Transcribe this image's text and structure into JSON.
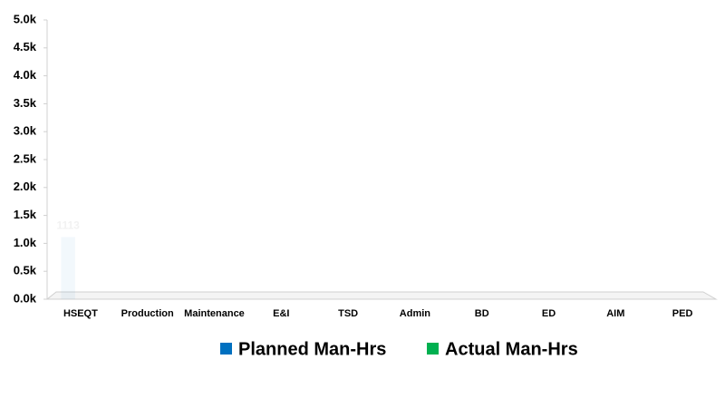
{
  "chart_data": {
    "type": "bar",
    "categories": [
      "HSEQT",
      "Production",
      "Maintenance",
      "E&I",
      "TSD",
      "Admin",
      "BD",
      "ED",
      "AIM",
      "PED"
    ],
    "series": [
      {
        "name": "Planned Man-Hrs",
        "color": "#0070c0",
        "values": [
          1113,
          0,
          0,
          0,
          0,
          0,
          0,
          0,
          0,
          0
        ]
      },
      {
        "name": "Actual Man-Hrs",
        "color": "#00b050",
        "values": [
          0,
          0,
          0,
          0,
          0,
          0,
          0,
          0,
          0,
          0
        ]
      }
    ],
    "ylim": [
      0,
      5000
    ],
    "yticks": [
      {
        "value": 0,
        "label": "0.0k"
      },
      {
        "value": 500,
        "label": "0.5k"
      },
      {
        "value": 1000,
        "label": "1.0k"
      },
      {
        "value": 1500,
        "label": "1.5k"
      },
      {
        "value": 2000,
        "label": "2.0k"
      },
      {
        "value": 2500,
        "label": "2.5k"
      },
      {
        "value": 3000,
        "label": "3.0k"
      },
      {
        "value": 3500,
        "label": "3.5k"
      },
      {
        "value": 4000,
        "label": "4.0k"
      },
      {
        "value": 4500,
        "label": "4.5k"
      },
      {
        "value": 5000,
        "label": "5.0k"
      }
    ],
    "grid": false,
    "legend": "bottom"
  }
}
